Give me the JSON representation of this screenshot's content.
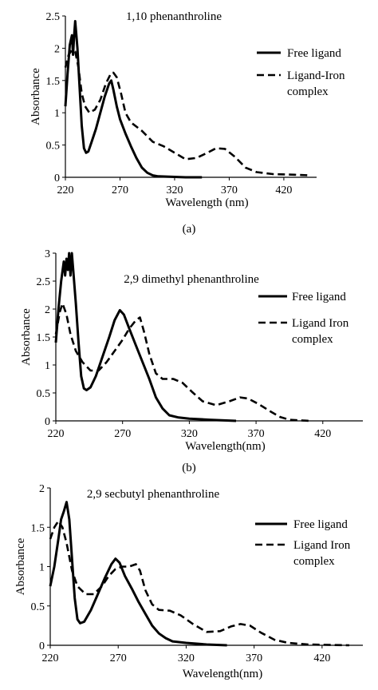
{
  "chart_data": [
    {
      "type": "line",
      "title": "1,10 phenanthroline",
      "caption": "(a)",
      "xlabel": "Wavelength (nm)",
      "ylabel": "Absorbance",
      "xlim": [
        220,
        450
      ],
      "ylim": [
        0,
        2.5
      ],
      "xticks": [
        "220",
        "270",
        "320",
        "370",
        "420"
      ],
      "yticks": [
        "0",
        "0.5",
        "1",
        "1.5",
        "2",
        "2.5"
      ],
      "legend_position": "right",
      "series": [
        {
          "name": "Free ligand",
          "style": "solid",
          "points": [
            [
              220,
              1.1
            ],
            [
              222,
              1.6
            ],
            [
              224,
              2.05
            ],
            [
              226,
              2.2
            ],
            [
              227,
              1.9
            ],
            [
              228,
              2.2
            ],
            [
              229,
              2.42
            ],
            [
              231,
              2.0
            ],
            [
              233,
              1.4
            ],
            [
              235,
              0.8
            ],
            [
              237,
              0.45
            ],
            [
              239,
              0.38
            ],
            [
              241,
              0.4
            ],
            [
              244,
              0.55
            ],
            [
              248,
              0.75
            ],
            [
              252,
              1.0
            ],
            [
              256,
              1.25
            ],
            [
              260,
              1.45
            ],
            [
              262,
              1.5
            ],
            [
              264,
              1.35
            ],
            [
              267,
              1.1
            ],
            [
              270,
              0.9
            ],
            [
              275,
              0.68
            ],
            [
              280,
              0.48
            ],
            [
              285,
              0.3
            ],
            [
              290,
              0.15
            ],
            [
              295,
              0.07
            ],
            [
              300,
              0.03
            ],
            [
              305,
              0.015
            ],
            [
              315,
              0.01
            ],
            [
              330,
              0.0
            ],
            [
              345,
              0.0
            ]
          ]
        },
        {
          "name": "Ligand-Iron complex",
          "style": "dashed",
          "points": [
            [
              220,
              1.7
            ],
            [
              223,
              1.9
            ],
            [
              226,
              1.97
            ],
            [
              229,
              1.95
            ],
            [
              232,
              1.7
            ],
            [
              235,
              1.3
            ],
            [
              238,
              1.1
            ],
            [
              242,
              1.0
            ],
            [
              247,
              1.05
            ],
            [
              252,
              1.2
            ],
            [
              257,
              1.45
            ],
            [
              262,
              1.62
            ],
            [
              264,
              1.62
            ],
            [
              267,
              1.55
            ],
            [
              271,
              1.3
            ],
            [
              275,
              1.0
            ],
            [
              280,
              0.85
            ],
            [
              290,
              0.72
            ],
            [
              300,
              0.55
            ],
            [
              310,
              0.48
            ],
            [
              320,
              0.38
            ],
            [
              330,
              0.28
            ],
            [
              340,
              0.3
            ],
            [
              350,
              0.38
            ],
            [
              358,
              0.45
            ],
            [
              366,
              0.44
            ],
            [
              375,
              0.32
            ],
            [
              385,
              0.15
            ],
            [
              395,
              0.08
            ],
            [
              410,
              0.05
            ],
            [
              430,
              0.04
            ],
            [
              445,
              0.03
            ]
          ]
        }
      ]
    },
    {
      "type": "line",
      "title": "2,9 dimethyl  phenanthroline",
      "caption": "(b)",
      "xlabel": "Wavelength(nm)",
      "ylabel": "Absorbance",
      "xlim": [
        220,
        450
      ],
      "ylim": [
        0,
        3
      ],
      "xticks": [
        "220",
        "270",
        "320",
        "370",
        "420"
      ],
      "yticks": [
        "0",
        "0.5",
        "1",
        "1.5",
        "2",
        "2.5",
        "3"
      ],
      "legend_position": "right",
      "series": [
        {
          "name": "Free ligand",
          "style": "solid",
          "points": [
            [
              220,
              1.4
            ],
            [
              222,
              2.0
            ],
            [
              224,
              2.5
            ],
            [
              226,
              2.85
            ],
            [
              227,
              2.6
            ],
            [
              228,
              2.9
            ],
            [
              229,
              2.7
            ],
            [
              230,
              3.0
            ],
            [
              231,
              2.6
            ],
            [
              232,
              3.0
            ],
            [
              233,
              2.7
            ],
            [
              235,
              2.1
            ],
            [
              237,
              1.4
            ],
            [
              239,
              0.8
            ],
            [
              241,
              0.58
            ],
            [
              243,
              0.55
            ],
            [
              246,
              0.6
            ],
            [
              250,
              0.8
            ],
            [
              255,
              1.15
            ],
            [
              260,
              1.5
            ],
            [
              264,
              1.8
            ],
            [
              268,
              1.98
            ],
            [
              271,
              1.9
            ],
            [
              275,
              1.65
            ],
            [
              280,
              1.35
            ],
            [
              285,
              1.05
            ],
            [
              290,
              0.75
            ],
            [
              295,
              0.42
            ],
            [
              300,
              0.22
            ],
            [
              305,
              0.1
            ],
            [
              312,
              0.06
            ],
            [
              320,
              0.04
            ],
            [
              335,
              0.02
            ],
            [
              355,
              0.0
            ]
          ]
        },
        {
          "name": "Ligand Iron complex",
          "style": "dashed",
          "points": [
            [
              220,
              1.55
            ],
            [
              223,
              1.95
            ],
            [
              225,
              2.1
            ],
            [
              228,
              1.9
            ],
            [
              231,
              1.55
            ],
            [
              235,
              1.25
            ],
            [
              240,
              1.05
            ],
            [
              246,
              0.9
            ],
            [
              252,
              0.9
            ],
            [
              258,
              1.05
            ],
            [
              264,
              1.25
            ],
            [
              270,
              1.45
            ],
            [
              275,
              1.65
            ],
            [
              280,
              1.8
            ],
            [
              283,
              1.85
            ],
            [
              286,
              1.6
            ],
            [
              290,
              1.2
            ],
            [
              295,
              0.85
            ],
            [
              300,
              0.75
            ],
            [
              308,
              0.75
            ],
            [
              315,
              0.68
            ],
            [
              322,
              0.52
            ],
            [
              330,
              0.35
            ],
            [
              340,
              0.28
            ],
            [
              350,
              0.35
            ],
            [
              358,
              0.42
            ],
            [
              364,
              0.4
            ],
            [
              372,
              0.3
            ],
            [
              380,
              0.18
            ],
            [
              388,
              0.07
            ],
            [
              395,
              0.02
            ],
            [
              410,
              0.0
            ]
          ]
        }
      ]
    },
    {
      "type": "line",
      "title": "2,9 secbutyl phenanthroline",
      "caption": "",
      "xlabel": "Wavelength(nm)",
      "ylabel": "Absorbance",
      "xlim": [
        220,
        450
      ],
      "ylim": [
        0,
        2
      ],
      "xticks": [
        "220",
        "270",
        "320",
        "370",
        "420"
      ],
      "yticks": [
        "0",
        "0.5",
        "1",
        "1.5",
        "2"
      ],
      "legend_position": "right",
      "series": [
        {
          "name": "Free ligand",
          "style": "solid",
          "points": [
            [
              220,
              0.75
            ],
            [
              223,
              1.0
            ],
            [
              226,
              1.35
            ],
            [
              228,
              1.6
            ],
            [
              230,
              1.7
            ],
            [
              232,
              1.82
            ],
            [
              234,
              1.6
            ],
            [
              236,
              1.1
            ],
            [
              238,
              0.6
            ],
            [
              240,
              0.33
            ],
            [
              242,
              0.28
            ],
            [
              245,
              0.3
            ],
            [
              250,
              0.45
            ],
            [
              255,
              0.65
            ],
            [
              260,
              0.85
            ],
            [
              265,
              1.03
            ],
            [
              268,
              1.1
            ],
            [
              271,
              1.05
            ],
            [
              275,
              0.88
            ],
            [
              280,
              0.72
            ],
            [
              285,
              0.55
            ],
            [
              290,
              0.4
            ],
            [
              295,
              0.25
            ],
            [
              300,
              0.15
            ],
            [
              305,
              0.09
            ],
            [
              310,
              0.05
            ],
            [
              320,
              0.03
            ],
            [
              335,
              0.01
            ],
            [
              350,
              0.0
            ]
          ]
        },
        {
          "name": "Ligand Iron complex",
          "style": "dashed",
          "points": [
            [
              220,
              1.35
            ],
            [
              223,
              1.5
            ],
            [
              226,
              1.58
            ],
            [
              229,
              1.5
            ],
            [
              232,
              1.3
            ],
            [
              236,
              0.95
            ],
            [
              240,
              0.75
            ],
            [
              246,
              0.65
            ],
            [
              252,
              0.65
            ],
            [
              258,
              0.75
            ],
            [
              263,
              0.88
            ],
            [
              268,
              0.97
            ],
            [
              273,
              1.0
            ],
            [
              278,
              1.0
            ],
            [
              283,
              1.03
            ],
            [
              286,
              0.95
            ],
            [
              290,
              0.7
            ],
            [
              295,
              0.52
            ],
            [
              300,
              0.45
            ],
            [
              308,
              0.44
            ],
            [
              316,
              0.38
            ],
            [
              325,
              0.27
            ],
            [
              335,
              0.17
            ],
            [
              345,
              0.18
            ],
            [
              353,
              0.24
            ],
            [
              360,
              0.27
            ],
            [
              367,
              0.25
            ],
            [
              375,
              0.16
            ],
            [
              385,
              0.07
            ],
            [
              395,
              0.03
            ],
            [
              410,
              0.01
            ],
            [
              440,
              0.0
            ]
          ]
        }
      ]
    }
  ]
}
